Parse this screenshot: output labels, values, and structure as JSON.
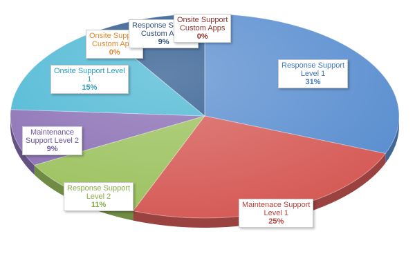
{
  "chart_data": {
    "type": "pie",
    "title": "",
    "slices": [
      {
        "label_lines": [
          "Response Support",
          "Level 1"
        ],
        "value": 31,
        "pct_label": "31%",
        "color": "#5b8fd0",
        "text_color": "#3f74b8"
      },
      {
        "label_lines": [
          "Maintenace Support",
          "Level 1"
        ],
        "value": 25,
        "pct_label": "25%",
        "color": "#d65c58",
        "text_color": "#b5413c"
      },
      {
        "label_lines": [
          "Response Support",
          "Level 2"
        ],
        "value": 11,
        "pct_label": "11%",
        "color": "#9cc25f",
        "text_color": "#86aa43"
      },
      {
        "label_lines": [
          "Maintenance",
          "Support Level 2"
        ],
        "value": 9,
        "pct_label": "9%",
        "color": "#8b70b5",
        "text_color": "#6e559c"
      },
      {
        "label_lines": [
          "Onsite Support Level",
          "1"
        ],
        "value": 15,
        "pct_label": "15%",
        "color": "#4db8d4",
        "text_color": "#2a9cbd"
      },
      {
        "label_lines": [
          "Onsite Support",
          "Custom Apps"
        ],
        "value": 0,
        "pct_label": "0%",
        "color": "#f59a3c",
        "text_color": "#e3882a"
      },
      {
        "label_lines": [
          "Response Support",
          "Custom Apps"
        ],
        "value": 9,
        "pct_label": "9%",
        "color": "#2e5a8f",
        "text_color": "#2e4e78"
      },
      {
        "label_lines": [
          "Onsite Support",
          "Custom Apps"
        ],
        "value": 0,
        "pct_label": "0%",
        "color": "#9b3b36",
        "text_color": "#8a302c"
      }
    ]
  }
}
